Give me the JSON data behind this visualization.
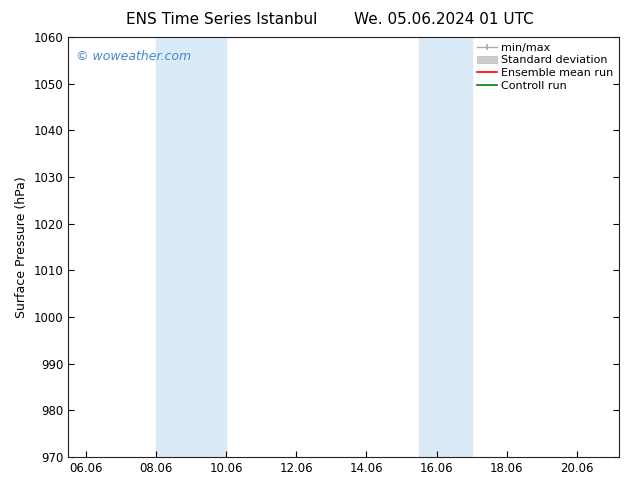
{
  "title_left": "ENS Time Series Istanbul",
  "title_right": "We. 05.06.2024 01 UTC",
  "ylabel": "Surface Pressure (hPa)",
  "ylim": [
    970,
    1060
  ],
  "yticks": [
    970,
    980,
    990,
    1000,
    1010,
    1020,
    1030,
    1040,
    1050,
    1060
  ],
  "xlim_start": 5.5,
  "xlim_end": 21.2,
  "xtick_labels": [
    "06.06",
    "08.06",
    "10.06",
    "12.06",
    "14.06",
    "16.06",
    "18.06",
    "20.06"
  ],
  "xtick_positions": [
    6.0,
    8.0,
    10.0,
    12.0,
    14.0,
    16.0,
    18.0,
    20.0
  ],
  "shaded_bands": [
    {
      "xmin": 8.0,
      "xmax": 10.0
    },
    {
      "xmin": 15.5,
      "xmax": 17.0
    }
  ],
  "shade_color": "#daeaf7",
  "watermark_text": "© woweather.com",
  "watermark_color": "#4488cc",
  "legend_labels": [
    "min/max",
    "Standard deviation",
    "Ensemble mean run",
    "Controll run"
  ],
  "legend_colors_line": [
    "#aaaaaa",
    "#cccccc",
    "red",
    "green"
  ],
  "bg_color": "#ffffff",
  "title_fontsize": 11,
  "axis_label_fontsize": 9,
  "tick_fontsize": 8.5,
  "legend_fontsize": 8
}
